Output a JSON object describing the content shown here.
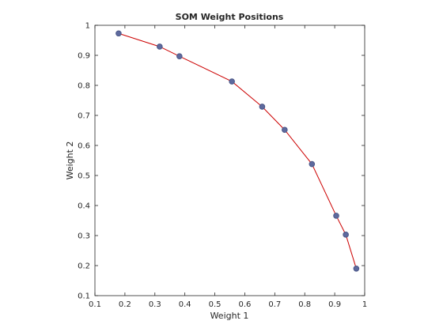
{
  "chart_data": {
    "type": "line",
    "title": "SOM Weight Positions",
    "xlabel": "Weight 1",
    "ylabel": "Weight 2",
    "xlim": [
      0.1,
      1.0
    ],
    "ylim": [
      0.1,
      1.0
    ],
    "xticks": [
      0.1,
      0.2,
      0.3,
      0.4,
      0.5,
      0.6,
      0.7,
      0.8,
      0.9,
      1.0
    ],
    "yticks": [
      0.1,
      0.2,
      0.3,
      0.4,
      0.5,
      0.6,
      0.7,
      0.8,
      0.9,
      1.0
    ],
    "xtick_labels": [
      "0.1",
      "0.2",
      "0.3",
      "0.4",
      "0.5",
      "0.6",
      "0.7",
      "0.8",
      "0.9",
      "1"
    ],
    "ytick_labels": [
      "0.1",
      "0.2",
      "0.3",
      "0.4",
      "0.5",
      "0.6",
      "0.7",
      "0.8",
      "0.9",
      "1"
    ],
    "grid": false,
    "series": [
      {
        "x": [
          0.179,
          0.316,
          0.382,
          0.557,
          0.658,
          0.733,
          0.824,
          0.905,
          0.937,
          0.972
        ],
        "y": [
          0.973,
          0.929,
          0.897,
          0.813,
          0.729,
          0.652,
          0.538,
          0.366,
          0.303,
          0.19
        ],
        "line_color": "#cc0000",
        "marker_color": "#5e6a9e",
        "marker_edge_color": "#4a5687"
      }
    ]
  }
}
